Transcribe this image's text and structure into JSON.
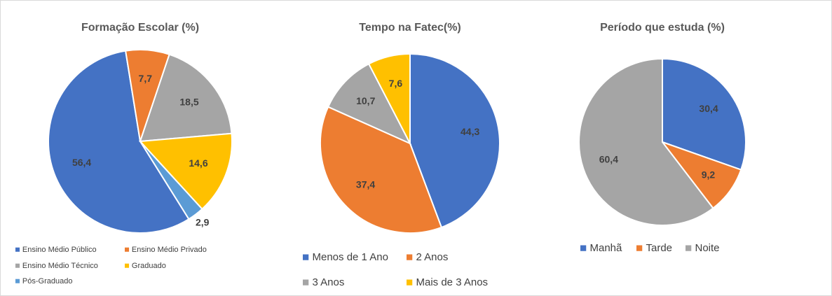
{
  "chart_data": [
    {
      "type": "pie",
      "title": "Formação Escolar (%)",
      "categories": [
        "Ensino Médio Público",
        "Ensino Médio Privado",
        "Ensino Médio Técnico",
        "Graduado",
        "Pós-Graduado"
      ],
      "values": [
        56.4,
        7.7,
        18.5,
        14.6,
        2.9
      ],
      "value_labels": [
        "56,4",
        "7,7",
        "18,5",
        "14,6",
        "2,9"
      ],
      "colors": [
        "#4472c4",
        "#ed7d31",
        "#a5a5a5",
        "#ffc000",
        "#5b9bd5"
      ]
    },
    {
      "type": "pie",
      "title": "Tempo na Fatec(%)",
      "categories": [
        "Menos de 1 Ano",
        "2 Anos",
        "3 Anos",
        "Mais de 3 Anos"
      ],
      "values": [
        44.3,
        37.4,
        10.7,
        7.6
      ],
      "value_labels": [
        "44,3",
        "37,4",
        "10,7",
        "7,6"
      ],
      "colors": [
        "#4472c4",
        "#ed7d31",
        "#a5a5a5",
        "#ffc000"
      ]
    },
    {
      "type": "pie",
      "title": "Período que estuda (%)",
      "categories": [
        "Manhã",
        "Tarde",
        "Noite"
      ],
      "values": [
        30.4,
        9.2,
        60.4
      ],
      "value_labels": [
        "30,4",
        "9,2",
        "60,4"
      ],
      "colors": [
        "#4472c4",
        "#ed7d31",
        "#a5a5a5"
      ]
    }
  ]
}
